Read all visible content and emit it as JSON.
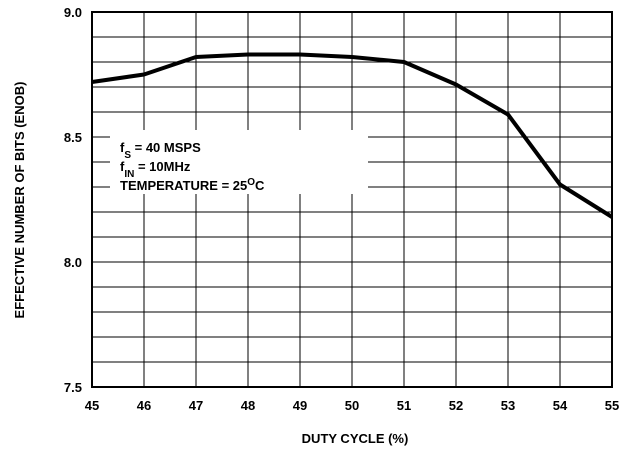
{
  "chart_data": {
    "type": "line",
    "xlabel": "DUTY CYCLE (%)",
    "ylabel": "EFFECTIVE NUMBER OF BITS (ENOB)",
    "x": [
      45,
      46,
      47,
      48,
      49,
      50,
      51,
      52,
      53,
      54,
      55
    ],
    "series": [
      {
        "color": "#000000",
        "values": [
          8.72,
          8.75,
          8.82,
          8.83,
          8.83,
          8.82,
          8.8,
          8.71,
          8.59,
          8.31,
          8.18
        ]
      }
    ],
    "xlim": [
      45,
      55
    ],
    "ylim": [
      7.5,
      9.0
    ],
    "xticks": [
      45,
      46,
      47,
      48,
      49,
      50,
      51,
      52,
      53,
      54,
      55
    ],
    "yticks": [
      7.5,
      {
        "value": 8,
        "label": "8.0"
      },
      8.5,
      {
        "value": 9,
        "label": "9.0"
      }
    ],
    "minor_yticks": [
      7.6,
      7.7,
      7.8,
      7.9,
      8.1,
      8.2,
      8.3,
      8.4,
      8.6,
      8.7,
      8.8,
      8.9
    ],
    "grid": true,
    "annotations": [
      [
        "f",
        "S",
        " = 40 MSPS"
      ],
      [
        "f",
        "IN",
        " = 10MHz"
      ],
      [
        "TEMPERATURE = 25",
        "O",
        "C"
      ]
    ]
  }
}
